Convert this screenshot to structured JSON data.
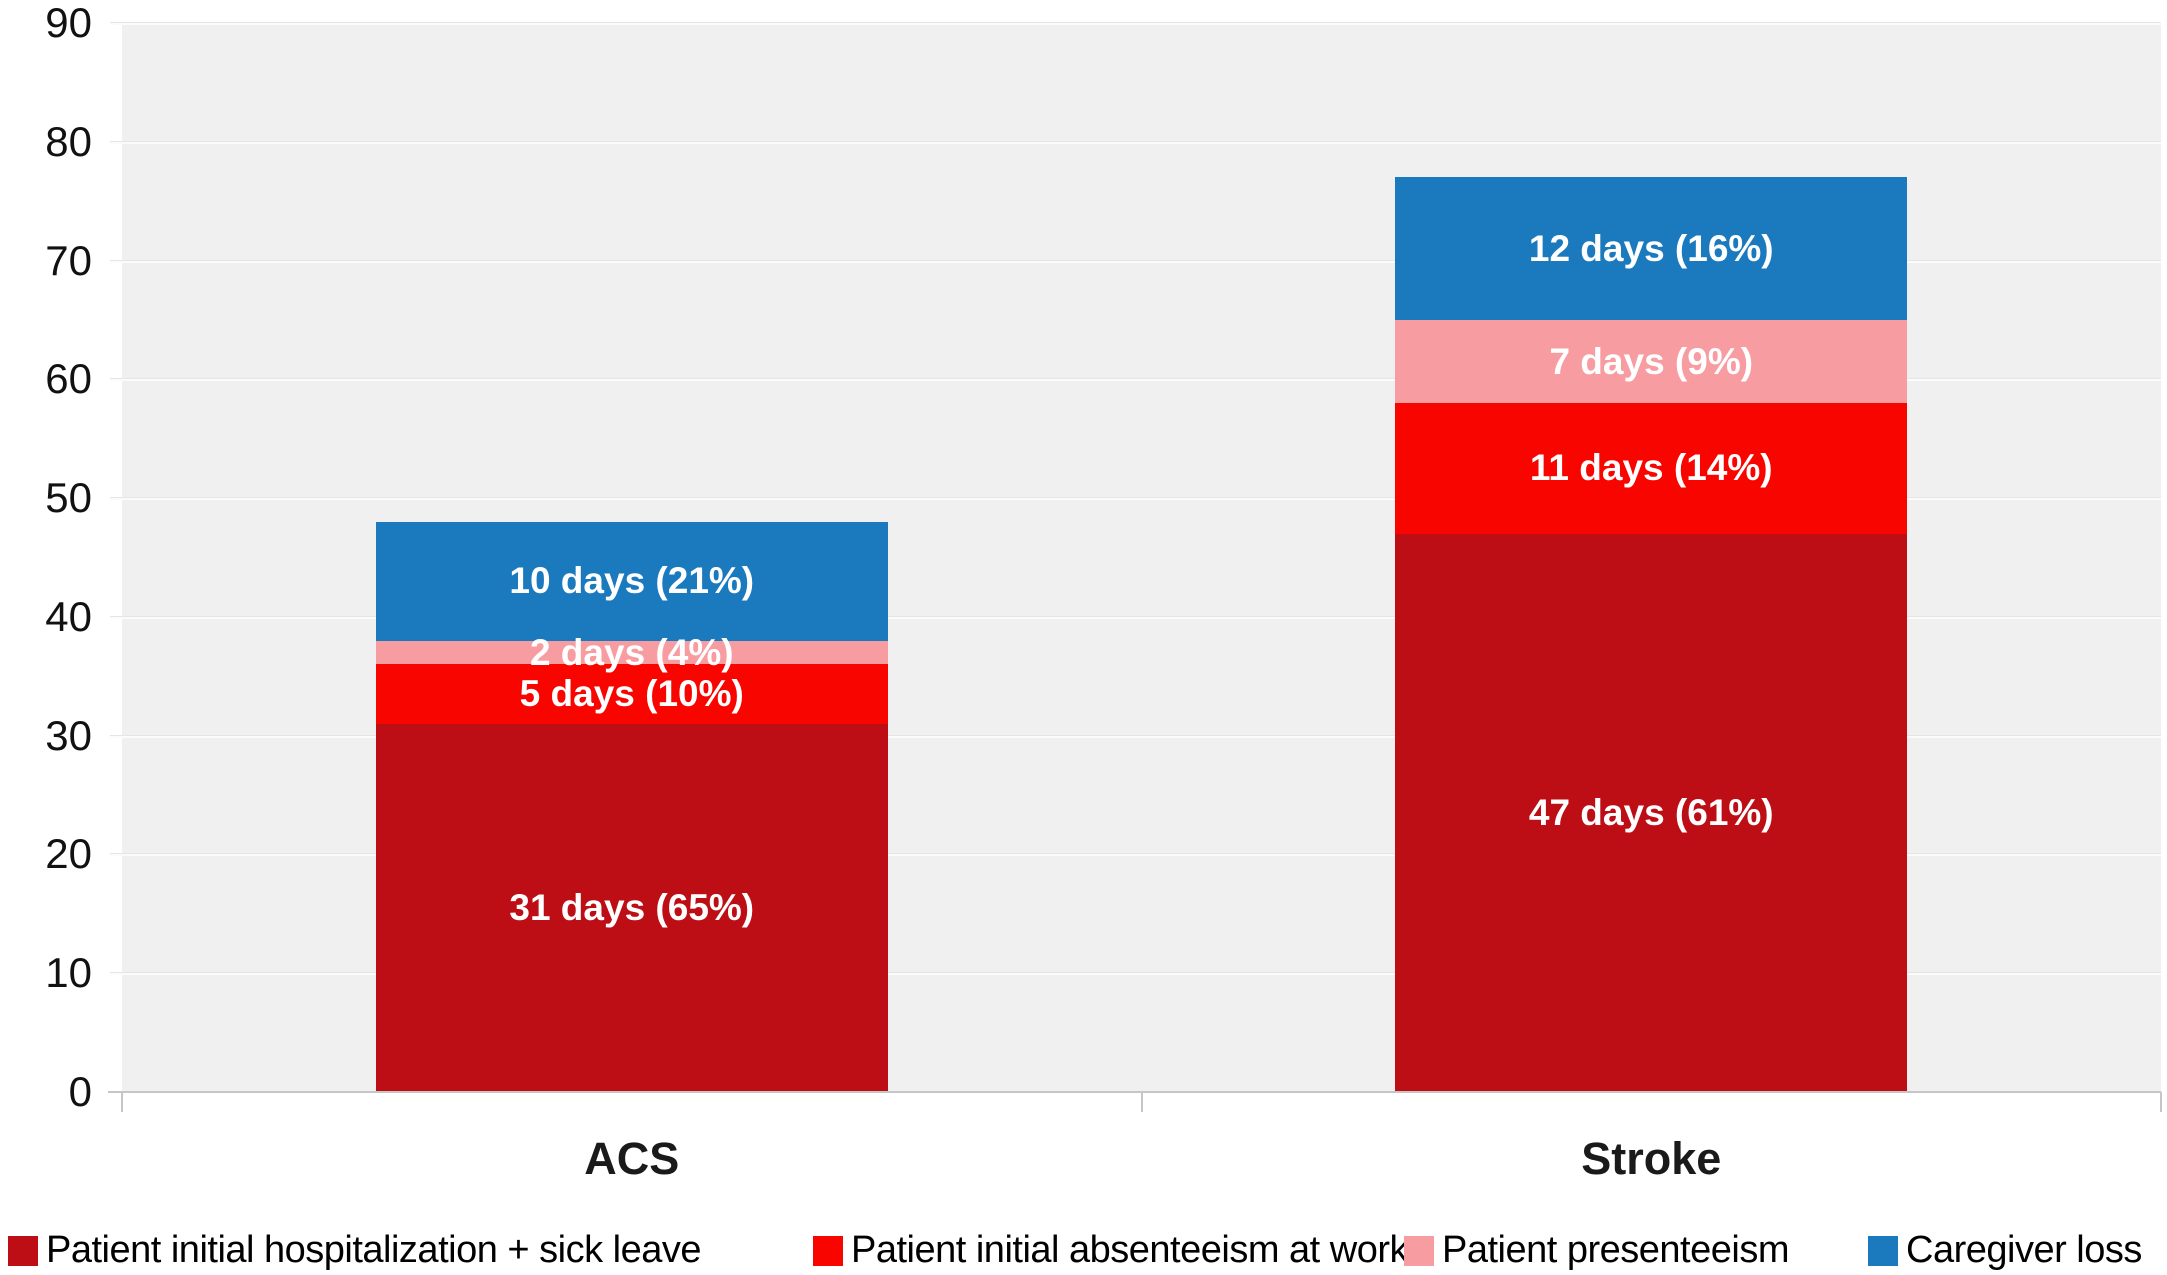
{
  "chart_data": {
    "type": "bar",
    "stacked": true,
    "title": "",
    "xlabel": "",
    "ylabel": "",
    "ylim": [
      0,
      90
    ],
    "ytick_step": 10,
    "ytick_labels": [
      "0",
      "10",
      "20",
      "30",
      "40",
      "50",
      "60",
      "70",
      "80",
      "90"
    ],
    "grid": true,
    "legend_position": "bottom",
    "categories": [
      "ACS",
      "Stroke"
    ],
    "series": [
      {
        "name": "Patient initial hospitalization + sick leave",
        "color": "#be0e15",
        "values": [
          31,
          47
        ],
        "segment_labels": [
          "31 days (65%)",
          "47 days (61%)"
        ]
      },
      {
        "name": "Patient initial absenteeism at work",
        "color": "#f90500",
        "values": [
          5,
          11
        ],
        "segment_labels": [
          "5 days (10%)",
          "11 days (14%)"
        ]
      },
      {
        "name": "Patient presenteeism",
        "color": "#f79da2",
        "values": [
          2,
          7
        ],
        "segment_labels": [
          "2 days (4%)",
          "7 days (9%)"
        ]
      },
      {
        "name": "Caregiver loss",
        "color": "#1b7abe",
        "values": [
          10,
          12
        ],
        "segment_labels": [
          "10 days (21%)",
          "12 days (16%)"
        ]
      }
    ],
    "colors": {
      "plot_background": "#f0f0f0",
      "gridline": "#fbfbfb",
      "axis_line": "#c6c6c6",
      "bar_label_text": "#ffffff",
      "axis_text": "#111111"
    }
  }
}
